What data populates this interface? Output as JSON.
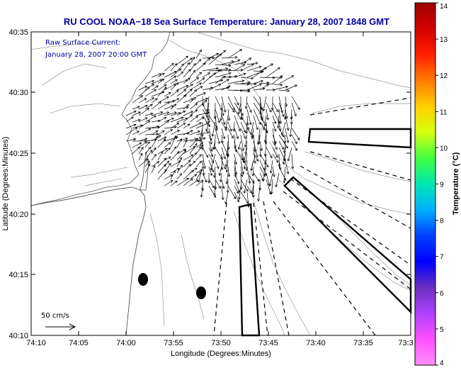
{
  "title": "RU COOL  NOAA−18  Sea Surface Temperature:  January 28, 2007 1848 GMT",
  "annotation": {
    "line1": "Raw Surface Current:",
    "line2": "January 28, 2007 20:00 GMT"
  },
  "scale": {
    "label": "50 cm/s"
  },
  "axes": {
    "xlabel": "Longitude (Degrees:Minutes)",
    "ylabel": "Latitude (Degrees:Minutes)",
    "xticks": [
      "74:10",
      "74:05",
      "74:00",
      "73:55",
      "73:50",
      "73:45",
      "73:40",
      "73:35",
      "73:3"
    ],
    "yticks": [
      "40:35",
      "40:30",
      "40:25",
      "40:20",
      "40:15",
      "40:10"
    ]
  },
  "colorbar": {
    "label": "Temperature (°C)",
    "ticks": [
      "14",
      "13",
      "12",
      "11",
      "10",
      "9",
      "8",
      "7",
      "6",
      "5",
      "4"
    ],
    "colors": [
      "#9b0000",
      "#d40000",
      "#ff2000",
      "#ff7a00",
      "#ffd000",
      "#d8ff10",
      "#40ff40",
      "#00e8b0",
      "#00b0ff",
      "#0040ff",
      "#0000ff",
      "#6a30c0",
      "#b040ff",
      "#ff50ff",
      "#ff90ff"
    ]
  }
}
